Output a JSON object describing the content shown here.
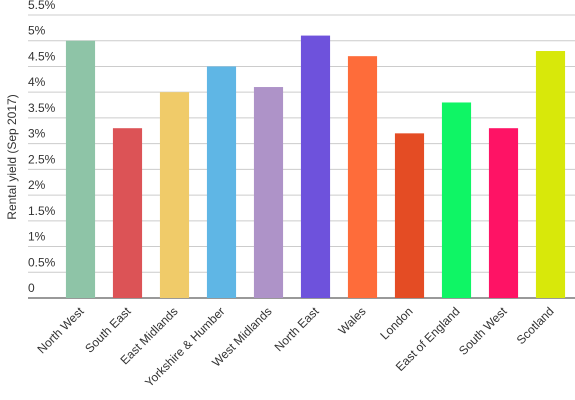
{
  "chart_data": {
    "type": "bar",
    "y_label": "Rental yield (Sep 2017)",
    "categories": [
      "North West",
      "South East",
      "East Midlands",
      "Yorkshire & Humber",
      "West Midlands",
      "North East",
      "Wales",
      "London",
      "East of England",
      "South West",
      "Scotland"
    ],
    "values": [
      5.0,
      3.3,
      4.0,
      4.5,
      4.1,
      5.1,
      4.7,
      3.2,
      3.8,
      3.3,
      4.8
    ],
    "colors": [
      "#8ec4a7",
      "#dc5356",
      "#f0cb69",
      "#5fb6e5",
      "#ae93c8",
      "#6e52dc",
      "#fe6c3a",
      "#e44c24",
      "#0ff565",
      "#fe1365",
      "#d8e80a"
    ],
    "ylim": [
      0,
      5.5
    ],
    "yticks": [
      0,
      {
        "value": 0.5,
        "label": "0.5%"
      },
      {
        "value": 1,
        "label": "1%"
      },
      {
        "value": 1.5,
        "label": "1.5%"
      },
      {
        "value": 2,
        "label": "2%"
      },
      {
        "value": 2.5,
        "label": "2.5%"
      },
      {
        "value": 3,
        "label": "3%"
      },
      {
        "value": 3.5,
        "label": "3.5%"
      },
      {
        "value": 4,
        "label": "4%"
      },
      {
        "value": 4.5,
        "label": "4.5%"
      },
      {
        "value": 5,
        "label": "5%"
      },
      {
        "value": 5.5,
        "label": "5.5%"
      }
    ],
    "grid": true
  }
}
